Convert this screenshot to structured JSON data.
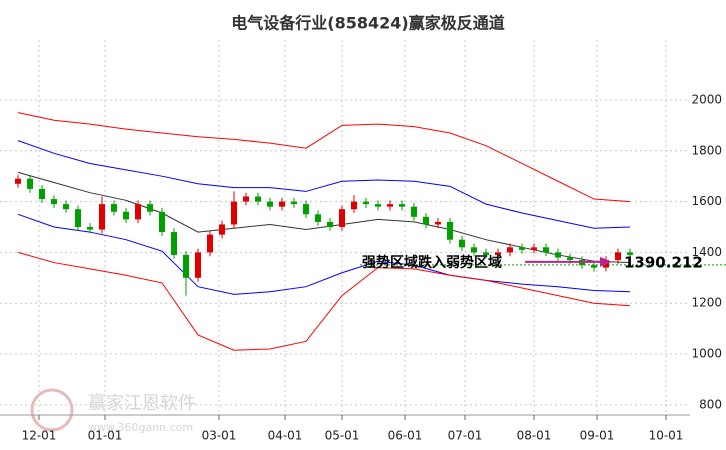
{
  "chart_data": {
    "type": "candlestick",
    "title": "电气设备行业(858424)赢家极反通道",
    "x": [
      0,
      4,
      8,
      12,
      16,
      20,
      24,
      28,
      32,
      36,
      40,
      44,
      48,
      52,
      56,
      60,
      64,
      68,
      72,
      76,
      80,
      84,
      88,
      92,
      96,
      100,
      104,
      108,
      112,
      116,
      120,
      124,
      128,
      132,
      136,
      140,
      144,
      148,
      152,
      156,
      160,
      164,
      168,
      172,
      176,
      180,
      184,
      188,
      192,
      196,
      200,
      204
    ],
    "open": [
      1670,
      1690,
      1650,
      1610,
      1590,
      1570,
      1500,
      1490,
      1590,
      1560,
      1530,
      1590,
      1560,
      1480,
      1390,
      1300,
      1400,
      1470,
      1510,
      1600,
      1620,
      1600,
      1580,
      1600,
      1590,
      1550,
      1520,
      1500,
      1570,
      1600,
      1590,
      1580,
      1590,
      1580,
      1540,
      1510,
      1520,
      1450,
      1420,
      1400,
      1390,
      1400,
      1420,
      1410,
      1420,
      1400,
      1380,
      1370,
      1350,
      1340,
      1370,
      1400
    ],
    "high": [
      1705,
      1705,
      1665,
      1625,
      1605,
      1585,
      1515,
      1620,
      1605,
      1575,
      1605,
      1605,
      1575,
      1495,
      1405,
      1415,
      1485,
      1525,
      1640,
      1635,
      1635,
      1615,
      1615,
      1615,
      1605,
      1565,
      1535,
      1585,
      1625,
      1615,
      1605,
      1605,
      1605,
      1595,
      1555,
      1535,
      1535,
      1465,
      1435,
      1415,
      1415,
      1435,
      1435,
      1435,
      1435,
      1415,
      1395,
      1385,
      1365,
      1385,
      1415,
      1415
    ],
    "low": [
      1655,
      1635,
      1595,
      1575,
      1555,
      1485,
      1475,
      1475,
      1545,
      1515,
      1515,
      1545,
      1465,
      1375,
      1230,
      1285,
      1385,
      1455,
      1495,
      1585,
      1585,
      1565,
      1565,
      1575,
      1535,
      1505,
      1485,
      1485,
      1555,
      1575,
      1565,
      1565,
      1565,
      1525,
      1495,
      1495,
      1435,
      1405,
      1385,
      1375,
      1375,
      1385,
      1395,
      1395,
      1385,
      1365,
      1355,
      1335,
      1325,
      1325,
      1355,
      1375
    ],
    "close": [
      1690,
      1650,
      1610,
      1590,
      1570,
      1500,
      1490,
      1590,
      1560,
      1530,
      1590,
      1560,
      1480,
      1390,
      1300,
      1400,
      1470,
      1510,
      1600,
      1620,
      1600,
      1580,
      1600,
      1590,
      1550,
      1520,
      1500,
      1570,
      1600,
      1590,
      1580,
      1590,
      1580,
      1540,
      1510,
      1520,
      1450,
      1420,
      1400,
      1390,
      1400,
      1420,
      1410,
      1420,
      1400,
      1380,
      1370,
      1350,
      1340,
      1370,
      1400,
      1390
    ],
    "up_color": "#e00000",
    "down_color": "#00a000",
    "band_x": [
      0,
      12,
      24,
      36,
      48,
      60,
      72,
      84,
      96,
      108,
      120,
      132,
      144,
      156,
      168,
      180,
      192,
      204
    ],
    "bands": [
      {
        "color": "#ff0000",
        "values": [
          1950,
          1920,
          1905,
          1885,
          1870,
          1855,
          1845,
          1830,
          1810,
          1900,
          1905,
          1895,
          1870,
          1820,
          1750,
          1680,
          1610,
          1600
        ]
      },
      {
        "color": "#0000ff",
        "values": [
          1840,
          1790,
          1750,
          1725,
          1700,
          1670,
          1655,
          1655,
          1640,
          1680,
          1685,
          1680,
          1660,
          1590,
          1555,
          1525,
          1495,
          1500
        ]
      },
      {
        "color": "#333333",
        "values": [
          1715,
          1675,
          1635,
          1605,
          1555,
          1480,
          1495,
          1510,
          1490,
          1510,
          1530,
          1520,
          1490,
          1450,
          1420,
          1390,
          1365,
          1360
        ]
      },
      {
        "color": "#0000ff",
        "values": [
          1550,
          1500,
          1480,
          1450,
          1405,
          1265,
          1235,
          1245,
          1265,
          1320,
          1365,
          1350,
          1310,
          1290,
          1275,
          1265,
          1250,
          1245
        ]
      },
      {
        "color": "#ff0000",
        "values": [
          1400,
          1360,
          1335,
          1310,
          1280,
          1075,
          1015,
          1020,
          1050,
          1230,
          1340,
          1335,
          1310,
          1290,
          1260,
          1230,
          1200,
          1190
        ]
      }
    ],
    "xlim": [
      -3,
      224
    ],
    "xticks": [
      {
        "value": 7,
        "label": "12-01"
      },
      {
        "value": 29,
        "label": "01-01"
      },
      {
        "value": 67,
        "label": "03-01"
      },
      {
        "value": 89,
        "label": "04-01"
      },
      {
        "value": 108,
        "label": "05-01"
      },
      {
        "value": 129,
        "label": "06-01"
      },
      {
        "value": 149,
        "label": "07-01"
      },
      {
        "value": 172,
        "label": "08-01"
      },
      {
        "value": 193,
        "label": "09-01"
      },
      {
        "value": 216,
        "label": "10-01"
      }
    ],
    "ylim": [
      760,
      2236
    ],
    "yticks": [
      800,
      1000,
      1200,
      1400,
      1600,
      1800,
      2000
    ],
    "grid": true,
    "annotation": "强势区域跌入弱势区域",
    "last_price": 1390.212,
    "watermark": {
      "name": "赢家江恩软件",
      "url": "www.360gann.com"
    }
  }
}
